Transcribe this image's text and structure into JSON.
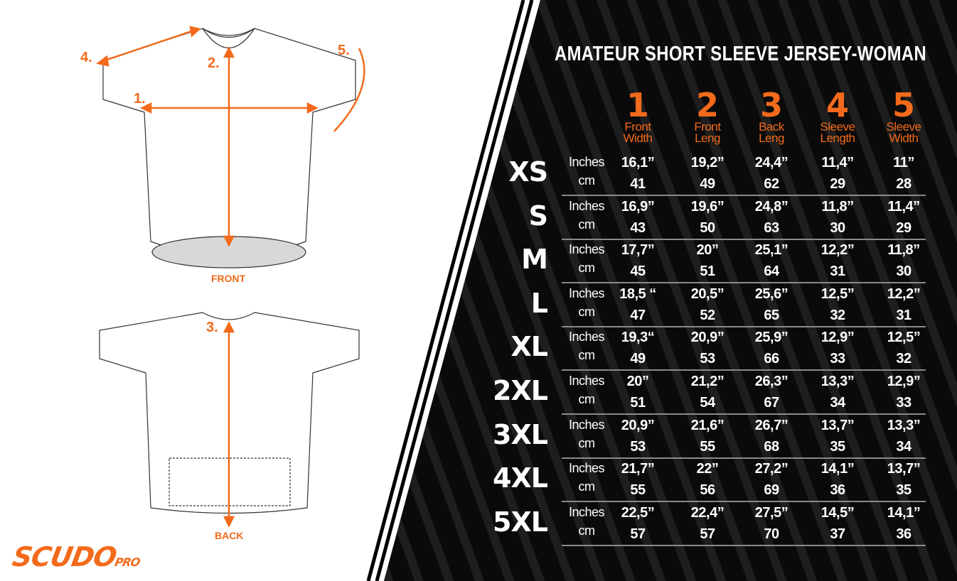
{
  "title": "AMATEUR SHORT SLEEVE JERSEY-WOMAN",
  "brand": {
    "name": "SCUDO",
    "suffix": "PRO"
  },
  "colors": {
    "accent": "#f26a1b",
    "background": "#0a0a0a"
  },
  "diagram_labels": {
    "front": "FRONT",
    "back": "BACK",
    "m1": "1.",
    "m2": "2.",
    "m3": "3.",
    "m4": "4.",
    "m5": "5."
  },
  "columns": [
    {
      "num": "1",
      "label1": "Front",
      "label2": "Width"
    },
    {
      "num": "2",
      "label1": "Front",
      "label2": "Leng"
    },
    {
      "num": "3",
      "label1": "Back",
      "label2": "Leng"
    },
    {
      "num": "4",
      "label1": "Sleeve",
      "label2": "Length"
    },
    {
      "num": "5",
      "label1": "Sleeve",
      "label2": "Width"
    }
  ],
  "units": {
    "inches": "Inches",
    "cm": "cm"
  },
  "rows": [
    {
      "size": "XS",
      "inches": [
        "16,1”",
        "19,2”",
        "24,4”",
        "11,4”",
        "11”"
      ],
      "cm": [
        "41",
        "49",
        "62",
        "29",
        "28"
      ]
    },
    {
      "size": "S",
      "inches": [
        "16,9”",
        "19,6”",
        "24,8”",
        "11,8”",
        "11,4”"
      ],
      "cm": [
        "43",
        "50",
        "63",
        "30",
        "29"
      ]
    },
    {
      "size": "M",
      "inches": [
        "17,7”",
        "20”",
        "25,1”",
        "12,2”",
        "11,8”"
      ],
      "cm": [
        "45",
        "51",
        "64",
        "31",
        "30"
      ]
    },
    {
      "size": "L",
      "inches": [
        "18,5 “",
        "20,5”",
        "25,6”",
        "12,5”",
        "12,2”"
      ],
      "cm": [
        "47",
        "52",
        "65",
        "32",
        "31"
      ]
    },
    {
      "size": "XL",
      "inches": [
        "19,3“",
        "20,9”",
        "25,9”",
        "12,9”",
        "12,5”"
      ],
      "cm": [
        "49",
        "53",
        "66",
        "33",
        "32"
      ]
    },
    {
      "size": "2XL",
      "inches": [
        "20”",
        "21,2”",
        "26,3”",
        "13,3”",
        "12,9”"
      ],
      "cm": [
        "51",
        "54",
        "67",
        "34",
        "33"
      ]
    },
    {
      "size": "3XL",
      "inches": [
        "20,9”",
        "21,6”",
        "26,7”",
        "13,7”",
        "13,3”"
      ],
      "cm": [
        "53",
        "55",
        "68",
        "35",
        "34"
      ]
    },
    {
      "size": "4XL",
      "inches": [
        "21,7”",
        "22”",
        "27,2”",
        "14,1”",
        "13,7”"
      ],
      "cm": [
        "55",
        "56",
        "69",
        "36",
        "35"
      ]
    },
    {
      "size": "5XL",
      "inches": [
        "22,5”",
        "22,4”",
        "27,5”",
        "14,5”",
        "14,1”"
      ],
      "cm": [
        "57",
        "57",
        "70",
        "37",
        "36"
      ]
    }
  ]
}
